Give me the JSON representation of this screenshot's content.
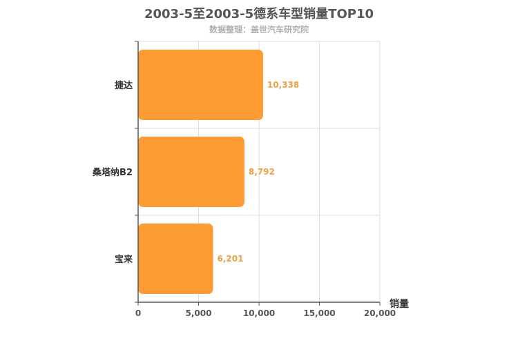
{
  "chart_data": {
    "type": "bar",
    "orientation": "horizontal",
    "title": "2003-5至2003-5德系车型销量TOP10",
    "subtitle": "数据整理：盖世汽车研究院",
    "categories": [
      "捷达",
      "桑塔纳B2",
      "宝来"
    ],
    "values": [
      10338,
      8792,
      6201
    ],
    "data_labels": [
      "10,338",
      "8,792",
      "6,201"
    ],
    "xlabel": "销量",
    "xlim": [
      0,
      20000
    ],
    "xticks": [
      0,
      5000,
      10000,
      15000,
      20000
    ],
    "xtick_labels": [
      "0",
      "5,000",
      "10,000",
      "15,000",
      "20,000"
    ],
    "grid": true,
    "bar_color": "#ff9b33"
  }
}
